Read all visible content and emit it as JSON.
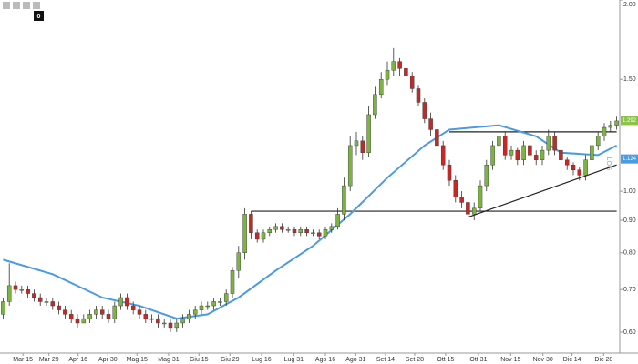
{
  "chart_data": {
    "type": "candlestick",
    "log_scale": true,
    "scale_label": "LOG",
    "toolbar_counter": "0",
    "up_color": "#7cb342",
    "down_color": "#c62828",
    "xlim": [
      -0.5,
      99.5
    ],
    "ylim": [
      0.556,
      2.0
    ],
    "xticks": [
      {
        "value": 3.2,
        "label": "Mar 15"
      },
      {
        "value": 7.4,
        "label": "Mar 29"
      },
      {
        "value": 12.1,
        "label": "Apr 16"
      },
      {
        "value": 16.9,
        "label": "Apr 30"
      },
      {
        "value": 21.6,
        "label": "Mag 15"
      },
      {
        "value": 26.7,
        "label": "Mag 31"
      },
      {
        "value": 31.6,
        "label": "Giu 15"
      },
      {
        "value": 36.6,
        "label": "Giu 29"
      },
      {
        "value": 41.7,
        "label": "Lug 16"
      },
      {
        "value": 46.9,
        "label": "Lug 31"
      },
      {
        "value": 52,
        "label": "Ago 16"
      },
      {
        "value": 56.9,
        "label": "Ago 31"
      },
      {
        "value": 61.7,
        "label": "Set 14"
      },
      {
        "value": 66.4,
        "label": "Set 28"
      },
      {
        "value": 71.4,
        "label": "Ott 15"
      },
      {
        "value": 76.7,
        "label": "Ott 31"
      },
      {
        "value": 81.9,
        "label": "Nov 15"
      },
      {
        "value": 87.1,
        "label": "Nov 30"
      },
      {
        "value": 91.8,
        "label": "Dic 14"
      },
      {
        "value": 96.9,
        "label": "Dic 28"
      }
    ],
    "yticks": [
      {
        "value": 2.0,
        "label": "2.00"
      },
      {
        "value": 1.5,
        "label": "1.50"
      },
      {
        "value": 1.0,
        "label": "1.00"
      },
      {
        "value": 0.9,
        "label": "0.90"
      },
      {
        "value": 0.8,
        "label": "0.80"
      },
      {
        "value": 0.7,
        "label": "0.70"
      },
      {
        "value": 0.6,
        "label": "0.60"
      }
    ],
    "x": [
      0,
      1,
      2,
      3,
      4,
      5,
      6,
      7,
      8,
      9,
      10,
      11,
      12,
      13,
      14,
      15,
      16,
      17,
      18,
      19,
      20,
      21,
      22,
      23,
      24,
      25,
      26,
      27,
      28,
      29,
      30,
      31,
      32,
      33,
      34,
      35,
      36,
      37,
      38,
      39,
      40,
      41,
      42,
      43,
      44,
      45,
      46,
      47,
      48,
      49,
      50,
      51,
      52,
      53,
      54,
      55,
      56,
      57,
      58,
      59,
      60,
      61,
      62,
      63,
      64,
      65,
      66,
      67,
      68,
      69,
      70,
      71,
      72,
      73,
      74,
      75,
      76,
      77,
      78,
      79,
      80,
      81,
      82,
      83,
      84,
      85,
      86,
      87,
      88,
      89,
      90,
      91,
      92,
      93,
      94,
      95,
      96,
      97,
      98,
      99
    ],
    "open": [
      0.64,
      0.67,
      0.71,
      0.7,
      0.7,
      0.69,
      0.68,
      0.67,
      0.67,
      0.66,
      0.65,
      0.64,
      0.63,
      0.62,
      0.63,
      0.64,
      0.65,
      0.64,
      0.63,
      0.66,
      0.68,
      0.66,
      0.65,
      0.64,
      0.63,
      0.63,
      0.62,
      0.62,
      0.61,
      0.62,
      0.63,
      0.64,
      0.65,
      0.66,
      0.66,
      0.67,
      0.67,
      0.69,
      0.75,
      0.8,
      0.92,
      0.86,
      0.84,
      0.86,
      0.87,
      0.88,
      0.87,
      0.87,
      0.86,
      0.87,
      0.86,
      0.86,
      0.85,
      0.87,
      0.88,
      0.92,
      1.02,
      1.18,
      1.2,
      1.15,
      1.32,
      1.42,
      1.5,
      1.55,
      1.6,
      1.56,
      1.52,
      1.45,
      1.38,
      1.3,
      1.25,
      1.18,
      1.1,
      1.04,
      0.98,
      0.96,
      0.92,
      0.94,
      1.02,
      1.1,
      1.18,
      1.22,
      1.14,
      1.16,
      1.12,
      1.18,
      1.14,
      1.12,
      1.16,
      1.22,
      1.16,
      1.12,
      1.1,
      1.08,
      1.06,
      1.12,
      1.18,
      1.22,
      1.26,
      1.27
    ],
    "high": [
      0.68,
      0.77,
      0.72,
      0.71,
      0.71,
      0.7,
      0.69,
      0.68,
      0.68,
      0.67,
      0.66,
      0.65,
      0.64,
      0.64,
      0.65,
      0.66,
      0.66,
      0.65,
      0.67,
      0.69,
      0.69,
      0.67,
      0.66,
      0.65,
      0.64,
      0.64,
      0.63,
      0.63,
      0.63,
      0.64,
      0.65,
      0.66,
      0.67,
      0.67,
      0.68,
      0.68,
      0.7,
      0.76,
      0.82,
      0.94,
      0.93,
      0.87,
      0.87,
      0.88,
      0.89,
      0.89,
      0.88,
      0.88,
      0.88,
      0.88,
      0.87,
      0.87,
      0.88,
      0.89,
      0.94,
      1.05,
      1.22,
      1.24,
      1.22,
      1.36,
      1.46,
      1.54,
      1.6,
      1.68,
      1.62,
      1.58,
      1.54,
      1.47,
      1.4,
      1.33,
      1.27,
      1.2,
      1.12,
      1.06,
      1.0,
      0.98,
      0.96,
      1.04,
      1.12,
      1.2,
      1.26,
      1.24,
      1.18,
      1.17,
      1.2,
      1.2,
      1.16,
      1.18,
      1.25,
      1.24,
      1.18,
      1.13,
      1.11,
      1.09,
      1.14,
      1.2,
      1.24,
      1.28,
      1.29,
      1.31
    ],
    "low": [
      0.63,
      0.66,
      0.69,
      0.69,
      0.68,
      0.67,
      0.66,
      0.66,
      0.65,
      0.64,
      0.63,
      0.62,
      0.61,
      0.62,
      0.62,
      0.63,
      0.63,
      0.62,
      0.62,
      0.65,
      0.65,
      0.64,
      0.63,
      0.62,
      0.62,
      0.61,
      0.61,
      0.6,
      0.6,
      0.61,
      0.62,
      0.63,
      0.64,
      0.65,
      0.65,
      0.66,
      0.66,
      0.68,
      0.73,
      0.78,
      0.84,
      0.83,
      0.83,
      0.85,
      0.86,
      0.86,
      0.86,
      0.85,
      0.85,
      0.85,
      0.85,
      0.84,
      0.84,
      0.86,
      0.87,
      0.9,
      1.0,
      1.14,
      1.12,
      1.13,
      1.3,
      1.4,
      1.47,
      1.52,
      1.52,
      1.5,
      1.43,
      1.36,
      1.28,
      1.22,
      1.16,
      1.08,
      1.02,
      0.96,
      0.94,
      0.9,
      0.9,
      0.93,
      1.0,
      1.08,
      1.16,
      1.12,
      1.12,
      1.1,
      1.1,
      1.12,
      1.1,
      1.1,
      1.14,
      1.14,
      1.1,
      1.08,
      1.06,
      1.04,
      1.04,
      1.1,
      1.16,
      1.2,
      1.24,
      1.25
    ],
    "close": [
      0.67,
      0.71,
      0.7,
      0.7,
      0.69,
      0.68,
      0.67,
      0.67,
      0.66,
      0.65,
      0.64,
      0.63,
      0.62,
      0.63,
      0.64,
      0.65,
      0.64,
      0.63,
      0.66,
      0.68,
      0.66,
      0.65,
      0.64,
      0.63,
      0.63,
      0.62,
      0.62,
      0.61,
      0.62,
      0.63,
      0.64,
      0.65,
      0.66,
      0.66,
      0.67,
      0.67,
      0.69,
      0.75,
      0.8,
      0.92,
      0.86,
      0.84,
      0.86,
      0.87,
      0.88,
      0.87,
      0.87,
      0.86,
      0.87,
      0.86,
      0.86,
      0.85,
      0.87,
      0.88,
      0.92,
      1.02,
      1.18,
      1.2,
      1.15,
      1.32,
      1.42,
      1.5,
      1.55,
      1.6,
      1.56,
      1.52,
      1.45,
      1.38,
      1.3,
      1.25,
      1.18,
      1.1,
      1.04,
      0.98,
      0.96,
      0.92,
      0.94,
      1.02,
      1.1,
      1.18,
      1.22,
      1.14,
      1.16,
      1.12,
      1.18,
      1.14,
      1.12,
      1.16,
      1.22,
      1.16,
      1.12,
      1.1,
      1.08,
      1.06,
      1.12,
      1.18,
      1.22,
      1.26,
      1.27,
      1.29
    ],
    "moving_average": {
      "color": "#4a9be0",
      "x": [
        0,
        8,
        16,
        22,
        28,
        33,
        38,
        44,
        50,
        56,
        62,
        68,
        72,
        80,
        86,
        90,
        96,
        99
      ],
      "values": [
        0.78,
        0.74,
        0.68,
        0.66,
        0.63,
        0.64,
        0.68,
        0.75,
        0.82,
        0.92,
        1.05,
        1.18,
        1.25,
        1.27,
        1.22,
        1.15,
        1.14,
        1.18
      ]
    },
    "lines": [
      {
        "x": [
          72,
          99
        ],
        "values": [
          1.24,
          1.24
        ]
      },
      {
        "x": [
          40,
          99
        ],
        "values": [
          0.93,
          0.93
        ]
      },
      {
        "x": [
          75,
          99
        ],
        "values": [
          0.91,
          1.1
        ]
      }
    ],
    "line_color": "#222222",
    "price_tags": [
      {
        "value": 1.292,
        "color": "#8bc34a"
      },
      {
        "value": 1.124,
        "color": "#4a9be0"
      }
    ]
  }
}
